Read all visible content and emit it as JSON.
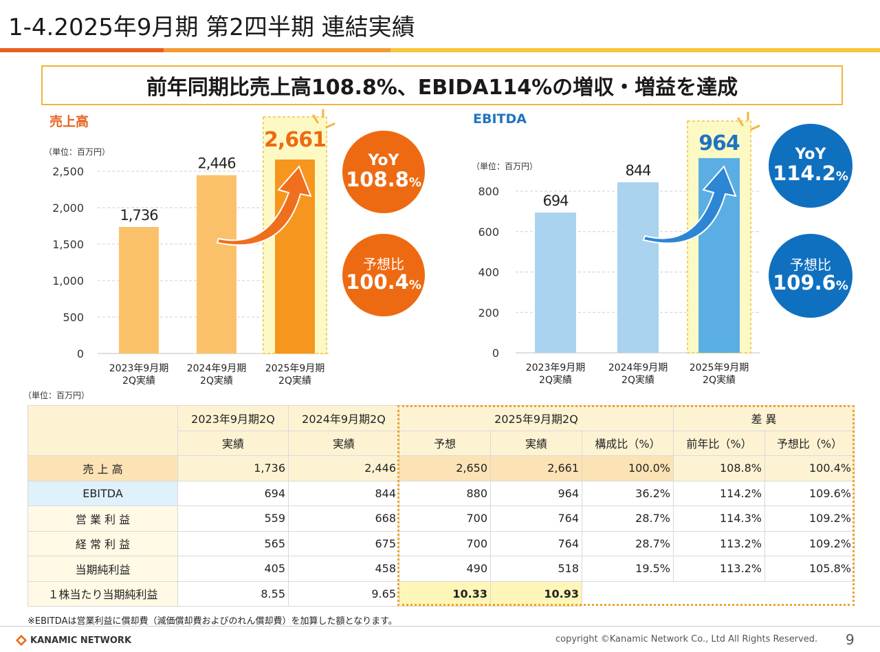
{
  "title": "1-4.2025年9月期 第2四半期 連結実績",
  "headline": "前年同期比売上高108.8%、EBIDA114%の増収・増益を達成",
  "sales_chart": {
    "label": "売上高",
    "unit": "（単位：百万円）",
    "y_ticks": [
      "2,500",
      "2,000",
      "1,500",
      "1,000",
      "500",
      "0"
    ],
    "highlight_value": "2,661"
  },
  "ebitda_chart": {
    "label": "EBITDA",
    "unit": "（単位：百万円）",
    "y_ticks": [
      "800",
      "600",
      "400",
      "200",
      "0"
    ],
    "highlight_value": "964"
  },
  "sales_yoy": {
    "label": "YoY",
    "value": "108.8",
    "unit": "%"
  },
  "sales_forecast": {
    "label": "予想比",
    "value": "100.4",
    "unit": "%"
  },
  "ebitda_yoy": {
    "label": "YoY",
    "value": "114.2",
    "unit": "%"
  },
  "ebitda_forecast": {
    "label": "予想比",
    "value": "109.6",
    "unit": "%"
  },
  "chart_data": [
    {
      "type": "bar",
      "title": "売上高",
      "categories": [
        "2023年9月期\n2Q実績",
        "2024年9月期\n2Q実績",
        "2025年9月期\n2Q実績"
      ],
      "values": [
        1736,
        2446,
        2661
      ],
      "value_labels": [
        "1,736",
        "2,446",
        "2,661"
      ],
      "ylim": [
        0,
        2500
      ],
      "colors": [
        "#fbc16a",
        "#fbc16a",
        "#f7961e"
      ]
    },
    {
      "type": "bar",
      "title": "EBITDA",
      "categories": [
        "2023年9月期\n2Q実績",
        "2024年9月期\n2Q実績",
        "2025年9月期\n2Q実績"
      ],
      "values": [
        694,
        844,
        964
      ],
      "value_labels": [
        "694",
        "844",
        "964"
      ],
      "ylim": [
        0,
        800
      ],
      "colors": [
        "#a9d3ef",
        "#a9d3ef",
        "#5baee3"
      ]
    }
  ],
  "table": {
    "unit": "（単位：百万円）",
    "col_groups": [
      "2023年9月期2Q",
      "2024年9月期2Q",
      "2025年9月期2Q",
      "差 異"
    ],
    "sub_headers": [
      "実績",
      "実績",
      "予想",
      "実績",
      "構成比（%）",
      "前年比（%）",
      "予想比（%）"
    ],
    "rows": [
      {
        "label": "売 上 高",
        "cells": [
          "1,736",
          "2,446",
          "2,650",
          "2,661",
          "100.0%",
          "108.8%",
          "100.4%"
        ]
      },
      {
        "label": "EBITDA",
        "cells": [
          "694",
          "844",
          "880",
          "964",
          "36.2%",
          "114.2%",
          "109.6%"
        ]
      },
      {
        "label": "営 業 利 益",
        "cells": [
          "559",
          "668",
          "700",
          "764",
          "28.7%",
          "114.3%",
          "109.2%"
        ]
      },
      {
        "label": "経 常 利 益",
        "cells": [
          "565",
          "675",
          "700",
          "764",
          "28.7%",
          "113.2%",
          "109.2%"
        ]
      },
      {
        "label": "当期純利益",
        "cells": [
          "405",
          "458",
          "490",
          "518",
          "19.5%",
          "113.2%",
          "105.8%"
        ]
      },
      {
        "label": "１株当たり当期純利益",
        "cells": [
          "8.55",
          "9.65",
          "10.33",
          "10.93",
          "",
          "",
          ""
        ]
      }
    ]
  },
  "footnote": "※EBITDAは営業利益に償却費（減価償却費およびのれん償却費）を加算した額となります。",
  "company": "KANAMIC NETWORK",
  "copyright": "copyright ©Kanamic Network Co., Ltd All Rights Reserved.",
  "page_number": "9"
}
